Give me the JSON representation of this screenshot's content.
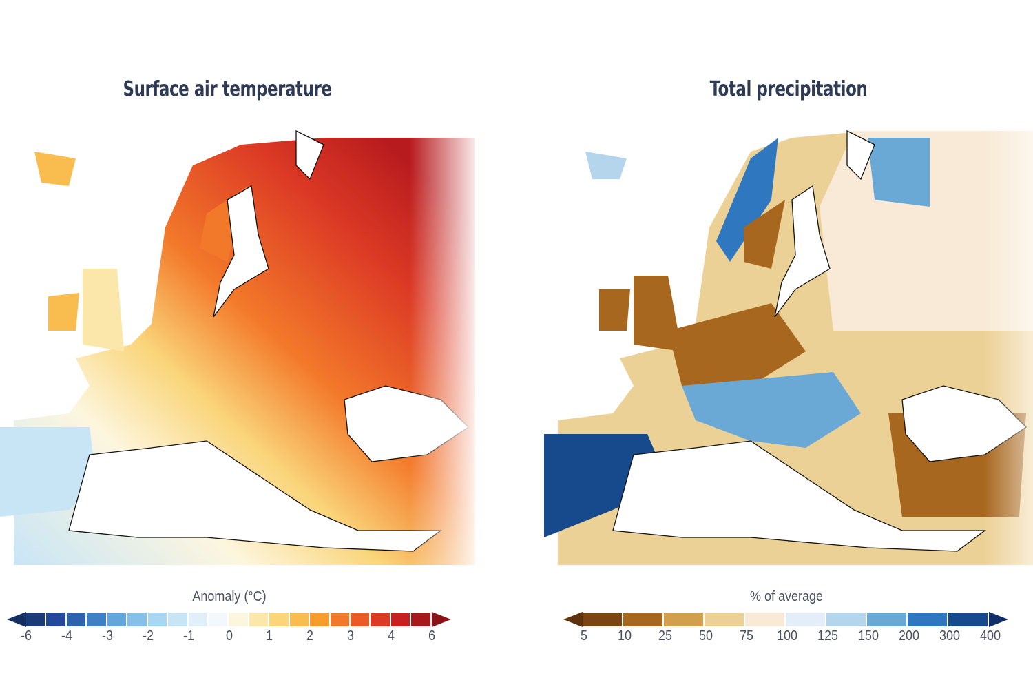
{
  "left_panel": {
    "title": "Surface air temperature",
    "legend_label": "Anomaly (°C)",
    "ticks": [
      "-6",
      "-4",
      "-3",
      "-2",
      "-1",
      "0",
      "1",
      "2",
      "3",
      "4",
      "6"
    ],
    "colors": [
      "#1b3a78",
      "#24489a",
      "#2f62ad",
      "#3f80c4",
      "#63a6dc",
      "#86bfe8",
      "#a9d6f3",
      "#c8e5f6",
      "#e1eff9",
      "#f2f8fc",
      "#fdf6df",
      "#fbe7a9",
      "#fad57a",
      "#f9bd4f",
      "#f79d2b",
      "#f3792a",
      "#ec5a27",
      "#dc3a25",
      "#c81f23",
      "#a8191c"
    ],
    "arrow_low_color": "#142e60",
    "arrow_high_color": "#8b1216"
  },
  "right_panel": {
    "title": "Total precipitation",
    "legend_label": "% of average",
    "ticks": [
      "5",
      "10",
      "25",
      "50",
      "75",
      "100",
      "125",
      "150",
      "200",
      "300",
      "400"
    ],
    "colors": [
      "#7a4512",
      "#a8671e",
      "#d0a04f",
      "#ecd196",
      "#f8ead6",
      "#e3eef8",
      "#b5d5ec",
      "#6aa9d6",
      "#2f78c0",
      "#174a8c"
    ],
    "arrow_low_color": "#5c330c",
    "arrow_high_color": "#0f2f66"
  }
}
